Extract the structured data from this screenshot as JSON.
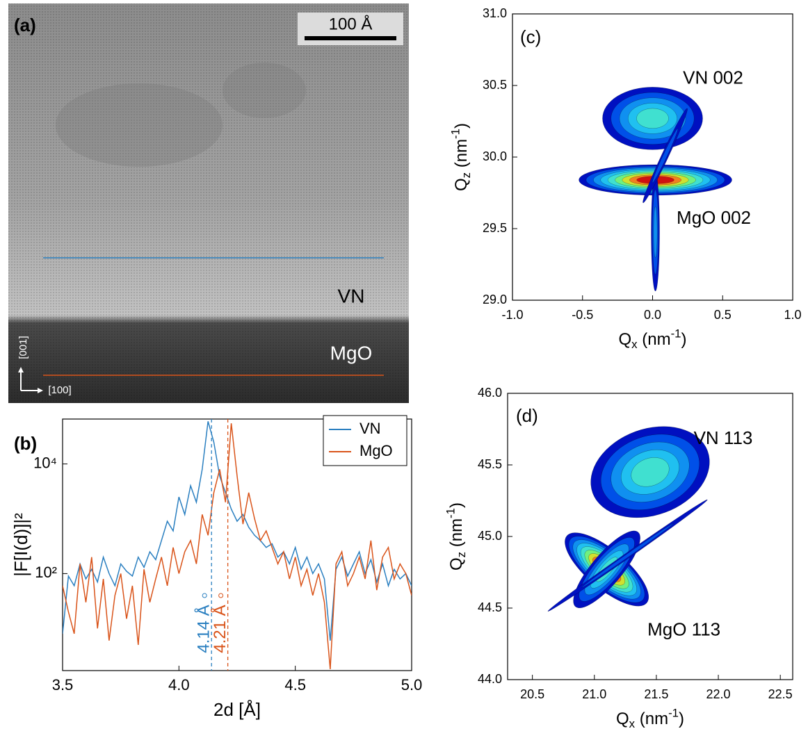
{
  "image": {
    "label": "(a)",
    "scale_bar": "100 Å",
    "layers": [
      "VN",
      "MgO"
    ],
    "directions": [
      "[001]",
      "[100]"
    ]
  },
  "chart_data": [
    {
      "type": "line",
      "panel_label": "(b)",
      "xlabel": "2d [Å]",
      "ylabel": "|F[I(d)]|²",
      "log_y": true,
      "xlim": [
        3.5,
        5.0
      ],
      "ylim": [
        1.7,
        66000
      ],
      "xticks": [
        3.5,
        {
          "value": 4,
          "label": "4.0"
        },
        4.5,
        {
          "value": 5,
          "label": "5.0"
        }
      ],
      "yticks": [
        {
          "value": 100,
          "label": "10²"
        },
        {
          "value": 10000,
          "label": "10⁴"
        }
      ],
      "legend": "upper right",
      "x": [
        3.5,
        3.525,
        3.55,
        3.575,
        3.6,
        3.625,
        3.65,
        3.675,
        3.7,
        3.725,
        3.75,
        3.775,
        3.8,
        3.825,
        3.85,
        3.875,
        3.9,
        3.925,
        3.95,
        3.975,
        4.0,
        4.025,
        4.05,
        4.075,
        4.1,
        4.125,
        4.15,
        4.175,
        4.2,
        4.225,
        4.25,
        4.275,
        4.3,
        4.325,
        4.35,
        4.375,
        4.4,
        4.425,
        4.45,
        4.475,
        4.5,
        4.525,
        4.55,
        4.575,
        4.6,
        4.625,
        4.65,
        4.675,
        4.7,
        4.725,
        4.75,
        4.775,
        4.8,
        4.825,
        4.85,
        4.875,
        4.9,
        4.925,
        4.95,
        4.975,
        5.0
      ],
      "series": [
        {
          "name": "VN",
          "color": "#2a7fc0",
          "values": [
            8,
            90,
            60,
            150,
            80,
            120,
            70,
            200,
            100,
            60,
            150,
            110,
            90,
            200,
            130,
            250,
            180,
            400,
            900,
            600,
            2500,
            1200,
            4000,
            2000,
            8000,
            60000,
            25000,
            6000,
            3000,
            1500,
            900,
            1200,
            700,
            500,
            400,
            300,
            350,
            200,
            250,
            150,
            300,
            120,
            200,
            100,
            150,
            80,
            6,
            120,
            200,
            90,
            150,
            250,
            100,
            180,
            70,
            150,
            60,
            120,
            80,
            100,
            60
          ]
        },
        {
          "name": "MgO",
          "color": "#d95319",
          "values": [
            60,
            20,
            8,
            150,
            30,
            200,
            10,
            80,
            6,
            40,
            100,
            15,
            60,
            5,
            120,
            30,
            80,
            200,
            60,
            300,
            100,
            250,
            400,
            150,
            1200,
            500,
            3000,
            8000,
            2000,
            55000,
            6000,
            800,
            3000,
            1000,
            400,
            600,
            300,
            150,
            250,
            80,
            200,
            60,
            120,
            40,
            100,
            30,
            1.8,
            150,
            250,
            60,
            100,
            200,
            80,
            400,
            50,
            200,
            300,
            80,
            150,
            100,
            40
          ]
        }
      ],
      "markers": [
        {
          "label": "4.14 Å",
          "x": 4.14,
          "color": "#2a7fc0"
        },
        {
          "label": "4.21 Å",
          "x": 4.21,
          "color": "#d95319"
        }
      ]
    },
    {
      "type": "contour",
      "panel_label": "(c)",
      "xlabel": {
        "base": "Q",
        "sub": "x",
        "unit": " (nm",
        "sup": "-1",
        "end": ")"
      },
      "ylabel": {
        "base": "Q",
        "sub": "z",
        "unit": " (nm",
        "sup": "-1",
        "end": ")"
      },
      "xlim": [
        -1,
        1
      ],
      "ylim": [
        29,
        31
      ],
      "xticks": [
        {
          "value": -1,
          "label": "-1.0"
        },
        -0.5,
        {
          "value": 0,
          "label": "0.0"
        },
        0.5,
        {
          "value": 1,
          "label": "1.0"
        }
      ],
      "yticks": [
        {
          "value": 29,
          "label": "29.0"
        },
        29.5,
        {
          "value": 30,
          "label": "30.0"
        },
        30.5,
        {
          "value": 31,
          "label": "31.0"
        }
      ],
      "peaks": [
        {
          "label": "VN 002",
          "x": 0,
          "y": 30.27
        },
        {
          "label": "MgO 002",
          "x": 0.02,
          "y": 29.84
        }
      ]
    },
    {
      "type": "contour",
      "panel_label": "(d)",
      "xlabel": {
        "base": "Q",
        "sub": "x",
        "unit": " (nm",
        "sup": "-1",
        "end": ")"
      },
      "ylabel": {
        "base": "Q",
        "sub": "z",
        "unit": " (nm",
        "sup": "-1",
        "end": ")"
      },
      "xlim": [
        20.3,
        22.6
      ],
      "ylim": [
        44,
        46
      ],
      "xticks": [
        20.5,
        {
          "value": 21,
          "label": "21.0"
        },
        21.5,
        {
          "value": 22,
          "label": "22.0"
        },
        22.5
      ],
      "yticks": [
        {
          "value": 44,
          "label": "44.0"
        },
        44.5,
        {
          "value": 45,
          "label": "45.0"
        },
        45.5,
        {
          "value": 46,
          "label": "46.0"
        }
      ],
      "peaks": [
        {
          "label": "VN 113",
          "x": 21.45,
          "y": 45.45
        },
        {
          "label": "MgO 113",
          "x": 21.1,
          "y": 44.77
        }
      ]
    }
  ]
}
